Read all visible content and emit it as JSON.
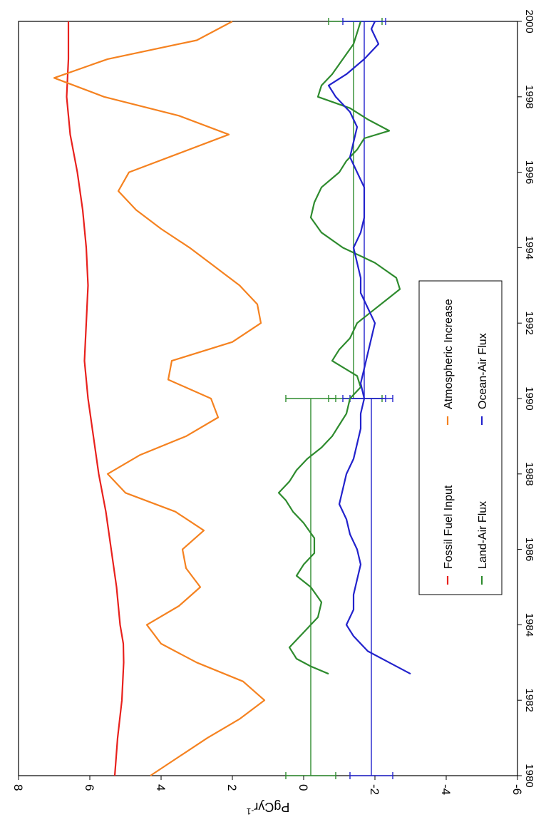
{
  "chart_data": {
    "type": "line",
    "orientation": "rotated-90-clockwise",
    "xlabel": "",
    "ylabel": "PgCyr",
    "ylabel_superscript": "-1",
    "xlim": [
      1980,
      2000
    ],
    "ylim": [
      -6,
      8
    ],
    "x_ticks": [
      "1980",
      "1982",
      "1984",
      "1986",
      "1988",
      "1990",
      "1992",
      "1994",
      "1996",
      "1998",
      "2000"
    ],
    "y_ticks": [
      "-6",
      "-4",
      "-2",
      "0",
      "2",
      "4",
      "6",
      "8"
    ],
    "x_tick_values": [
      1980,
      1982,
      1984,
      1986,
      1988,
      1990,
      1992,
      1994,
      1996,
      1998,
      2000
    ],
    "y_tick_values": [
      -6,
      -4,
      -2,
      0,
      2,
      4,
      6,
      8
    ],
    "grid": false,
    "legend_position": "bottom-center",
    "legend": [
      {
        "label": "Fossil Fuel Input",
        "series": 0
      },
      {
        "label": "Atmospheric Increase",
        "series": 1
      },
      {
        "label": "Land-Air Flux",
        "series": 2
      },
      {
        "label": "Ocean-Air Flux",
        "series": 3
      }
    ],
    "series": [
      {
        "name": "Fossil Fuel Input",
        "color": "#e8211d",
        "points": [
          [
            1980,
            5.3
          ],
          [
            1981,
            5.22
          ],
          [
            1982,
            5.1
          ],
          [
            1983,
            5.05
          ],
          [
            1983.5,
            5.06
          ],
          [
            1984,
            5.15
          ],
          [
            1985,
            5.25
          ],
          [
            1986,
            5.4
          ],
          [
            1987,
            5.55
          ],
          [
            1988,
            5.75
          ],
          [
            1989,
            5.9
          ],
          [
            1990,
            6.05
          ],
          [
            1991,
            6.15
          ],
          [
            1992,
            6.1
          ],
          [
            1993,
            6.05
          ],
          [
            1994,
            6.1
          ],
          [
            1995,
            6.2
          ],
          [
            1996,
            6.35
          ],
          [
            1997,
            6.55
          ],
          [
            1998,
            6.65
          ],
          [
            1999,
            6.6
          ],
          [
            2000,
            6.6
          ]
        ]
      },
      {
        "name": "Atmospheric Increase",
        "color": "#f58220",
        "points": [
          [
            1980,
            4.3
          ],
          [
            1980.5,
            3.5
          ],
          [
            1981,
            2.7
          ],
          [
            1981.5,
            1.8
          ],
          [
            1982,
            1.1
          ],
          [
            1982.5,
            1.7
          ],
          [
            1983,
            3.0
          ],
          [
            1983.5,
            4.0
          ],
          [
            1984,
            4.4
          ],
          [
            1984.5,
            3.5
          ],
          [
            1985,
            2.9
          ],
          [
            1985.5,
            3.3
          ],
          [
            1986,
            3.4
          ],
          [
            1986.5,
            2.8
          ],
          [
            1987,
            3.6
          ],
          [
            1987.5,
            5.0
          ],
          [
            1988,
            5.5
          ],
          [
            1988.5,
            4.6
          ],
          [
            1989,
            3.3
          ],
          [
            1989.5,
            2.4
          ],
          [
            1990,
            2.6
          ],
          [
            1990.5,
            3.8
          ],
          [
            1991,
            3.7
          ],
          [
            1991.5,
            2.0
          ],
          [
            1992,
            1.2
          ],
          [
            1992.5,
            1.3
          ],
          [
            1993,
            1.8
          ],
          [
            1993.5,
            2.5
          ],
          [
            1994,
            3.2
          ],
          [
            1994.5,
            4.0
          ],
          [
            1995,
            4.7
          ],
          [
            1995.5,
            5.2
          ],
          [
            1996,
            4.9
          ],
          [
            1996.5,
            3.5
          ],
          [
            1997,
            2.1
          ],
          [
            1997.5,
            3.5
          ],
          [
            1998,
            5.6
          ],
          [
            1998.5,
            7.0
          ],
          [
            1999,
            5.5
          ],
          [
            1999.5,
            3.0
          ],
          [
            2000,
            2.0
          ]
        ]
      },
      {
        "name": "Land-Air Flux",
        "color": "#2e8b2e",
        "points": [
          [
            1982.7,
            -0.7
          ],
          [
            1982.9,
            -0.2
          ],
          [
            1983.1,
            0.2
          ],
          [
            1983.4,
            0.4
          ],
          [
            1983.8,
            0.0
          ],
          [
            1984.2,
            -0.4
          ],
          [
            1984.6,
            -0.5
          ],
          [
            1985.0,
            -0.2
          ],
          [
            1985.3,
            0.2
          ],
          [
            1985.6,
            0.0
          ],
          [
            1985.9,
            -0.3
          ],
          [
            1986.3,
            -0.3
          ],
          [
            1986.7,
            0.0
          ],
          [
            1987.0,
            0.3
          ],
          [
            1987.3,
            0.5
          ],
          [
            1987.5,
            0.7
          ],
          [
            1987.8,
            0.4
          ],
          [
            1988.1,
            0.2
          ],
          [
            1988.4,
            -0.1
          ],
          [
            1988.7,
            -0.5
          ],
          [
            1989.0,
            -0.8
          ],
          [
            1989.3,
            -1.0
          ],
          [
            1989.6,
            -1.2
          ],
          [
            1990.0,
            -1.3
          ],
          [
            1990.3,
            -1.6
          ],
          [
            1990.6,
            -1.5
          ],
          [
            1991.0,
            -0.8
          ],
          [
            1991.3,
            -1.0
          ],
          [
            1991.6,
            -1.3
          ],
          [
            1992.0,
            -1.5
          ],
          [
            1992.3,
            -1.9
          ],
          [
            1992.6,
            -2.3
          ],
          [
            1992.9,
            -2.7
          ],
          [
            1993.2,
            -2.6
          ],
          [
            1993.6,
            -2.0
          ],
          [
            1994.0,
            -1.1
          ],
          [
            1994.4,
            -0.5
          ],
          [
            1994.8,
            -0.2
          ],
          [
            1995.2,
            -0.3
          ],
          [
            1995.6,
            -0.5
          ],
          [
            1996.0,
            -1.0
          ],
          [
            1996.3,
            -1.2
          ],
          [
            1996.6,
            -1.5
          ],
          [
            1996.9,
            -1.7
          ],
          [
            1997.1,
            -2.4
          ],
          [
            1997.4,
            -1.8
          ],
          [
            1997.7,
            -1.3
          ],
          [
            1998.0,
            -0.4
          ],
          [
            1998.3,
            -0.5
          ],
          [
            1998.6,
            -0.8
          ],
          [
            1999.0,
            -1.1
          ],
          [
            1999.4,
            -1.4
          ],
          [
            1999.7,
            -1.5
          ],
          [
            2000.0,
            -1.6
          ]
        ]
      },
      {
        "name": "Ocean-Air Flux",
        "color": "#2222cc",
        "points": [
          [
            1982.7,
            -3.0
          ],
          [
            1983.0,
            -2.4
          ],
          [
            1983.3,
            -1.8
          ],
          [
            1983.7,
            -1.4
          ],
          [
            1984.0,
            -1.2
          ],
          [
            1984.4,
            -1.4
          ],
          [
            1984.8,
            -1.4
          ],
          [
            1985.2,
            -1.5
          ],
          [
            1985.6,
            -1.6
          ],
          [
            1986.0,
            -1.5
          ],
          [
            1986.4,
            -1.3
          ],
          [
            1986.8,
            -1.2
          ],
          [
            1987.2,
            -1.0
          ],
          [
            1987.6,
            -1.1
          ],
          [
            1988.0,
            -1.2
          ],
          [
            1988.4,
            -1.4
          ],
          [
            1988.8,
            -1.5
          ],
          [
            1989.2,
            -1.6
          ],
          [
            1989.6,
            -1.6
          ],
          [
            1990.0,
            -1.7
          ],
          [
            1990.4,
            -1.6
          ],
          [
            1990.8,
            -1.7
          ],
          [
            1991.2,
            -1.8
          ],
          [
            1991.6,
            -1.9
          ],
          [
            1992.0,
            -2.0
          ],
          [
            1992.4,
            -1.8
          ],
          [
            1992.8,
            -1.6
          ],
          [
            1993.2,
            -1.6
          ],
          [
            1993.6,
            -1.5
          ],
          [
            1994.0,
            -1.4
          ],
          [
            1994.4,
            -1.6
          ],
          [
            1994.8,
            -1.7
          ],
          [
            1995.2,
            -1.7
          ],
          [
            1995.6,
            -1.7
          ],
          [
            1996.0,
            -1.5
          ],
          [
            1996.4,
            -1.3
          ],
          [
            1996.8,
            -1.4
          ],
          [
            1997.2,
            -1.5
          ],
          [
            1997.6,
            -1.3
          ],
          [
            1998.0,
            -0.9
          ],
          [
            1998.3,
            -0.7
          ],
          [
            1998.6,
            -1.2
          ],
          [
            1999.0,
            -1.7
          ],
          [
            1999.4,
            -2.1
          ],
          [
            1999.8,
            -1.9
          ],
          [
            2000.0,
            -2.0
          ]
        ]
      }
    ],
    "decadal_means": [
      {
        "series": "Land-Air Flux",
        "color": "#2e8b2e",
        "x": [
          1980,
          1990
        ],
        "value": -0.2,
        "err_low": -0.9,
        "err_high": 0.5
      },
      {
        "series": "Land-Air Flux",
        "color": "#2e8b2e",
        "x": [
          1990,
          2000
        ],
        "value": -1.4,
        "err_low": -2.2,
        "err_high": -0.7
      },
      {
        "series": "Ocean-Air Flux",
        "color": "#2222cc",
        "x": [
          1980,
          1990
        ],
        "value": -1.9,
        "err_low": -2.5,
        "err_high": -1.3
      },
      {
        "series": "Ocean-Air Flux",
        "color": "#2222cc",
        "x": [
          1990,
          2000
        ],
        "value": -1.7,
        "err_low": -2.3,
        "err_high": -1.1
      }
    ]
  }
}
